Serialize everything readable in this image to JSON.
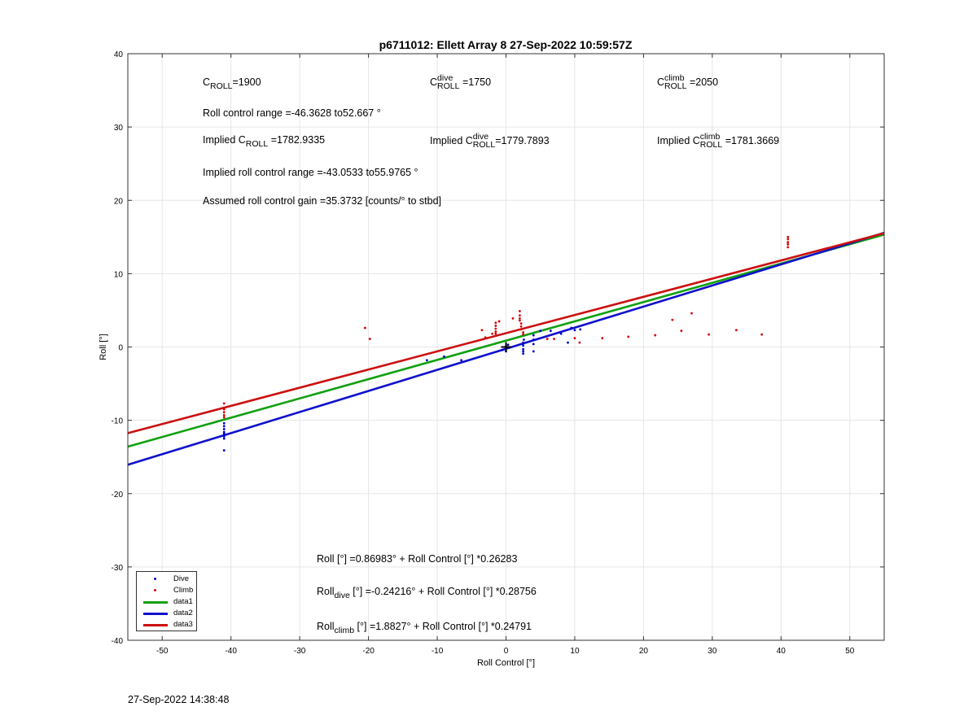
{
  "page": {
    "timestamp": "27-Sep-2022 14:38:48"
  },
  "colors": {
    "dive": "#0000cc",
    "climb": "#d40000",
    "data1": "#11a011",
    "data2": "#1010cc",
    "data3": "#cc1010"
  },
  "annotations": {
    "c_roll": {
      "main": "C",
      "sub": "ROLL",
      "value": "=1900"
    },
    "c_roll_dive": {
      "main": "C",
      "sup": "dive",
      "sub": "ROLL",
      "value": " =1750"
    },
    "c_roll_climb": {
      "main": "C",
      "sup": "climb",
      "sub": "ROLL",
      "value": " =2050"
    },
    "roll_control_range": "Roll control range =-46.3628 to52.667 °",
    "implied_c_roll": {
      "prefix": "Implied C",
      "sub": "ROLL",
      "value": " =1782.9335"
    },
    "implied_c_roll_dive": {
      "prefix": "Implied C",
      "sup": "dive",
      "sub": "ROLL",
      "value": "=1779.7893"
    },
    "implied_c_roll_climb": {
      "prefix": "Implied C",
      "sup": "climb",
      "sub": "ROLL",
      "value": " =1781.3669"
    },
    "implied_range": "Implied roll control range =-43.0533 to55.9765 °",
    "gain": "Assumed roll control gain =35.3732 [counts/° to stbd]",
    "fit_all": "Roll [°] =0.86983° + Roll Control [°] *0.26283",
    "fit_dive": {
      "prefix": "Roll",
      "sub": "dive",
      "value": " [°] =-0.24216° + Roll Control [°] *0.28756"
    },
    "fit_climb": {
      "prefix": "Roll",
      "sub": "climb",
      "value": " [°] =1.8827° + Roll Control [°] *0.24791"
    }
  },
  "chart_data": {
    "type": "scatter",
    "title": "p6711012: Ellett Array 8 27-Sep-2022 10:59:57Z",
    "xlabel": "Roll Control [°]",
    "ylabel": "Roll [°]",
    "xlim": [
      -55,
      55
    ],
    "ylim": [
      -40,
      40
    ],
    "xticks": [
      -50,
      -40,
      -30,
      -20,
      -10,
      0,
      10,
      20,
      30,
      40,
      50
    ],
    "yticks": [
      -40,
      -30,
      -20,
      -10,
      0,
      10,
      20,
      30,
      40
    ],
    "grid": true,
    "legend": "bottom-left",
    "series": [
      {
        "name": "Dive",
        "kind": "points",
        "points": [
          [
            -41,
            -14.1
          ],
          [
            -41,
            -12.5
          ],
          [
            -41,
            -12.2
          ],
          [
            -41,
            -12.0
          ],
          [
            -41,
            -11.8
          ],
          [
            -41,
            -11.6
          ],
          [
            -41,
            -11.2
          ],
          [
            -41,
            -10.8
          ],
          [
            -41,
            -10.4
          ],
          [
            -11.5,
            -1.8
          ],
          [
            -9,
            -1.3
          ],
          [
            -6.5,
            -1.8
          ],
          [
            -0.5,
            -0.4
          ],
          [
            0,
            0.1
          ],
          [
            0,
            -0.6
          ],
          [
            0.3,
            0.3
          ],
          [
            2.5,
            -0.3
          ],
          [
            2.5,
            -0.6
          ],
          [
            2.5,
            -0.9
          ],
          [
            2.5,
            0.2
          ],
          [
            2.5,
            0.6
          ],
          [
            2.6,
            1.0
          ],
          [
            4,
            -0.6
          ],
          [
            4,
            0.4
          ],
          [
            4,
            1.0
          ],
          [
            4,
            1.6
          ],
          [
            5,
            2.2
          ],
          [
            6.5,
            2.2
          ],
          [
            8,
            1.8
          ],
          [
            9,
            0.6
          ],
          [
            9.5,
            2.6
          ],
          [
            10,
            2.3
          ],
          [
            10.8,
            2.4
          ]
        ]
      },
      {
        "name": "Climb",
        "kind": "points",
        "points": [
          [
            -41,
            -7.7
          ],
          [
            -41,
            -8.5
          ],
          [
            -41,
            -8.9
          ],
          [
            -41,
            -9.3
          ],
          [
            -41,
            -9.6
          ],
          [
            -20.5,
            2.6
          ],
          [
            -19.8,
            1.1
          ],
          [
            -3.5,
            2.3
          ],
          [
            -3,
            1.3
          ],
          [
            -2,
            1.8
          ],
          [
            -1.5,
            1.8
          ],
          [
            -1.5,
            2.1
          ],
          [
            -1.5,
            2.5
          ],
          [
            -1.5,
            2.9
          ],
          [
            -1.5,
            3.3
          ],
          [
            -1,
            3.5
          ],
          [
            1,
            3.9
          ],
          [
            2,
            4.9
          ],
          [
            2,
            4.3
          ],
          [
            2,
            3.9
          ],
          [
            2,
            3.6
          ],
          [
            2.2,
            3.2
          ],
          [
            2.2,
            2.8
          ],
          [
            2.2,
            2.4
          ],
          [
            2.5,
            2.0
          ],
          [
            2.5,
            1.7
          ],
          [
            6,
            1.1
          ],
          [
            7,
            1.1
          ],
          [
            10,
            1.2
          ],
          [
            10.7,
            0.6
          ],
          [
            14,
            1.2
          ],
          [
            17.8,
            1.4
          ],
          [
            21.7,
            1.6
          ],
          [
            24.2,
            3.7
          ],
          [
            25.5,
            2.2
          ],
          [
            27,
            4.6
          ],
          [
            29.5,
            1.7
          ],
          [
            33.5,
            2.3
          ],
          [
            37.2,
            1.7
          ],
          [
            41,
            15.0
          ],
          [
            41,
            14.7
          ],
          [
            41,
            14.3
          ],
          [
            41,
            14.0
          ],
          [
            41,
            13.6
          ]
        ]
      },
      {
        "name": "data1",
        "kind": "line",
        "x": [
          -55,
          55
        ],
        "y": [
          -13.586,
          15.325
        ]
      },
      {
        "name": "data2",
        "kind": "line",
        "x": [
          -55,
          55
        ],
        "y": [
          -16.058,
          15.574
        ]
      },
      {
        "name": "data3",
        "kind": "line",
        "x": [
          -55,
          55
        ],
        "y": [
          -11.752,
          15.518
        ]
      }
    ]
  }
}
